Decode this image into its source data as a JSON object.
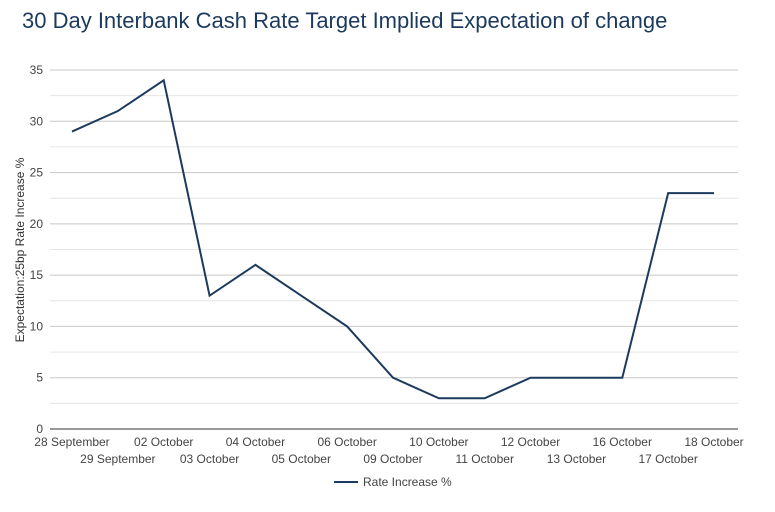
{
  "chart_data": {
    "type": "line",
    "title": "30 Day Interbank Cash Rate Target Implied Expectation of change",
    "xlabel": "",
    "ylabel": "Expectation:25bp Rate Increase %",
    "categories": [
      "28 September",
      "29 September",
      "02 October",
      "03 October",
      "04 October",
      "05 October",
      "06 October",
      "09 October",
      "10 October",
      "11 October",
      "12 October",
      "13 October",
      "16 October",
      "17 October",
      "18 October"
    ],
    "series": [
      {
        "name": "Rate Increase %",
        "values": [
          29,
          31,
          34,
          13,
          16,
          13,
          10,
          5,
          3,
          3,
          5,
          5,
          5,
          23,
          23
        ]
      }
    ],
    "ylim": [
      0,
      35
    ],
    "yticks": [
      0,
      5,
      10,
      15,
      20,
      25,
      30,
      35
    ],
    "grid": true,
    "legend": "bottom",
    "line_color": "#1c3a5e"
  }
}
